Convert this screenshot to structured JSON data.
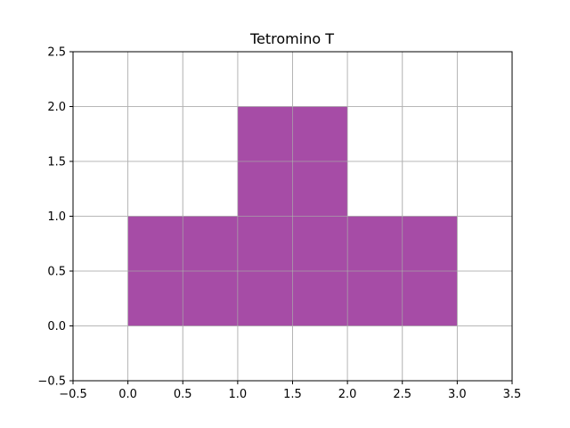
{
  "chart_data": {
    "type": "patch",
    "title": "Tetromino T",
    "xlabel": "",
    "ylabel": "",
    "xlim": [
      -0.5,
      3.5
    ],
    "ylim": [
      -0.5,
      2.5
    ],
    "xticks": [
      -0.5,
      0.0,
      0.5,
      1.0,
      1.5,
      2.0,
      2.5,
      3.0,
      3.5
    ],
    "yticks": [
      -0.5,
      0.0,
      0.5,
      1.0,
      1.5,
      2.0,
      2.5
    ],
    "xtick_labels": [
      "−0.5",
      "0.0",
      "0.5",
      "1.0",
      "1.5",
      "2.0",
      "2.5",
      "3.0",
      "3.5"
    ],
    "ytick_labels": [
      "−0.5",
      "0.0",
      "0.5",
      "1.0",
      "1.5",
      "2.0",
      "2.5"
    ],
    "grid": true,
    "blocks": [
      {
        "x": 0,
        "y": 0,
        "w": 1,
        "h": 1
      },
      {
        "x": 1,
        "y": 0,
        "w": 1,
        "h": 1
      },
      {
        "x": 2,
        "y": 0,
        "w": 1,
        "h": 1
      },
      {
        "x": 1,
        "y": 1,
        "w": 1,
        "h": 1
      }
    ],
    "fill_color": "#800080",
    "fill_alpha": 0.7,
    "grid_color": "#b0b0b0"
  }
}
